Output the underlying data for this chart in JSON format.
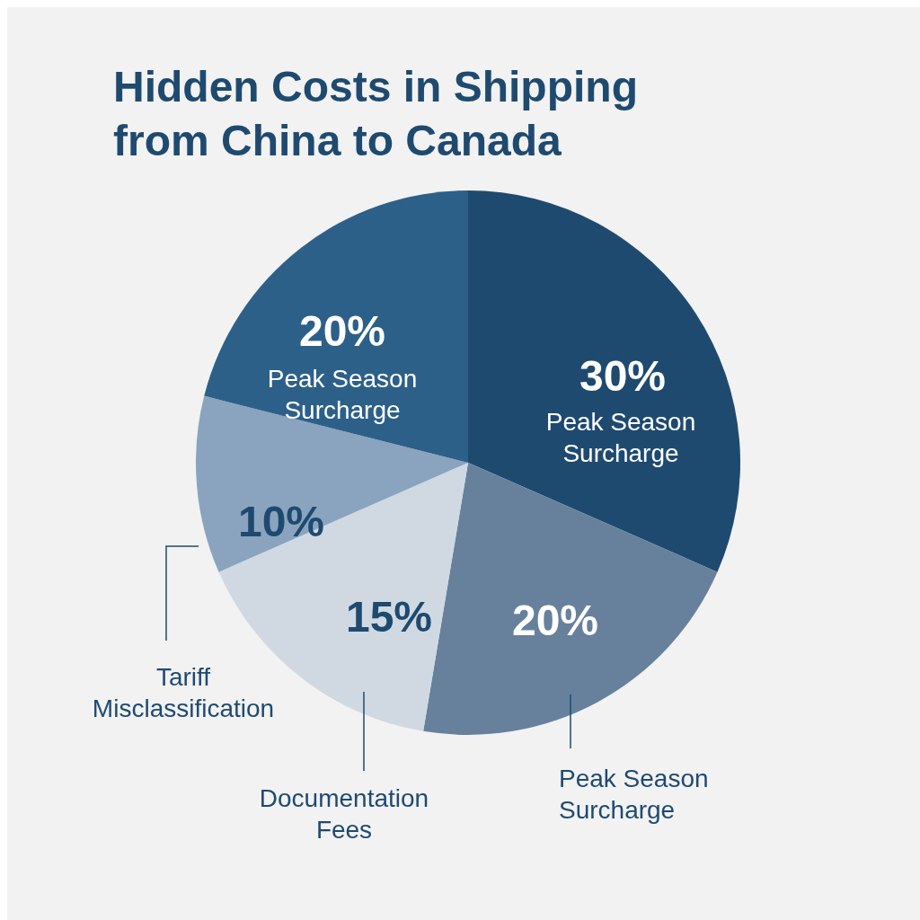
{
  "chart_data": {
    "type": "pie",
    "title": "Hidden Costs in Shipping from China to Canada",
    "categories": [
      "Peak Season Surcharge",
      "Peak Season Surcharge",
      "Documentation Fees",
      "Tariff Misclassification",
      "Peak Season Surcharge"
    ],
    "values": [
      30,
      20,
      15,
      10,
      20
    ],
    "value_labels": [
      "30%",
      "20%",
      "15%",
      "10%",
      "20%"
    ],
    "colors": [
      "#1f4a70",
      "#67819c",
      "#d0d9e2",
      "#8aa4bf",
      "#2d6089"
    ]
  }
}
